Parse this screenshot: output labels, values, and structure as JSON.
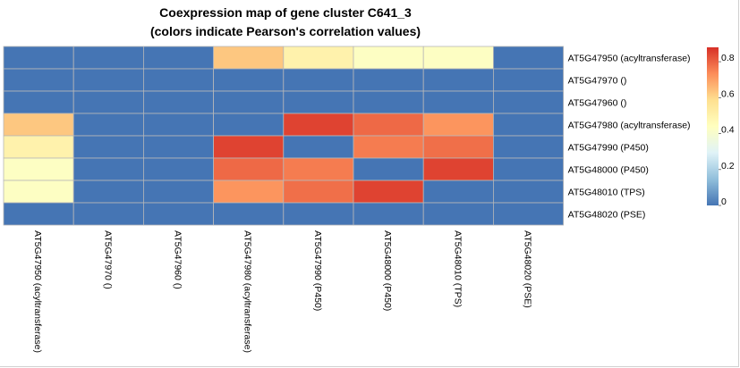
{
  "chart_data": {
    "type": "heatmap",
    "title": "Coexpression map of gene cluster C641_3",
    "subtitle": "(colors indicate Pearson's correlation values)",
    "rows": [
      "AT5G47950 (acyltransferase)",
      "AT5G47970 ()",
      "AT5G47960 ()",
      "AT5G47980 (acyltransferase)",
      "AT5G47990 (P450)",
      "AT5G48000 (P450)",
      "AT5G48010 (TPS)",
      "AT5G48020 (PSE)"
    ],
    "columns": [
      "AT5G47950 (acyltransferase)",
      "AT5G47970 ()",
      "AT5G47960 ()",
      "AT5G47980 (acyltransferase)",
      "AT5G47990 (P450)",
      "AT5G48000 (P450)",
      "AT5G48010 (TPS)",
      "AT5G48020 (PSE)"
    ],
    "values": [
      [
        0,
        0,
        0,
        0.63,
        0.5,
        0.43,
        0.43,
        0
      ],
      [
        0,
        0,
        0,
        0,
        0,
        0,
        0,
        0
      ],
      [
        0,
        0,
        0,
        0,
        0,
        0,
        0,
        0
      ],
      [
        0.63,
        0,
        0,
        0,
        0.85,
        0.79,
        0.72,
        0
      ],
      [
        0.5,
        0,
        0,
        0.85,
        0,
        0.76,
        0.78,
        0
      ],
      [
        0.43,
        0,
        0,
        0.79,
        0.76,
        0,
        0.85,
        0
      ],
      [
        0.43,
        0,
        0,
        0.72,
        0.78,
        0.85,
        0,
        0
      ],
      [
        0,
        0,
        0,
        0,
        0,
        0,
        0,
        0
      ]
    ],
    "colorbar": {
      "min": 0,
      "max": 0.88,
      "ticks": [
        "0",
        "0.2",
        "0.4",
        "0.6",
        "0.8"
      ],
      "tick_values": [
        0,
        0.2,
        0.4,
        0.6,
        0.8
      ],
      "colors": [
        "#4575b4",
        "#91bfdb",
        "#e0f3f8",
        "#ffffbf",
        "#fee090",
        "#fc8d59",
        "#d73027"
      ]
    }
  }
}
